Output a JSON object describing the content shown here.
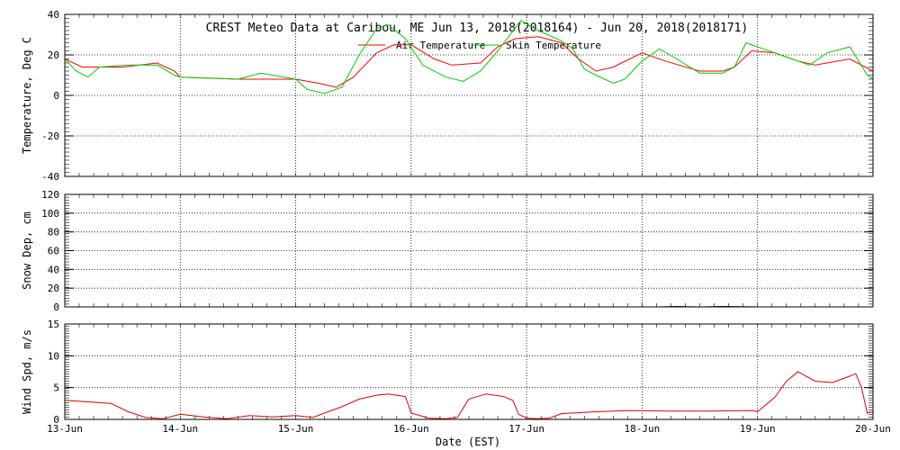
{
  "chart_data": {
    "title": "CREST Meteo Data at Caribou, ME   Jun 13, 2018(2018164) - Jun 20, 2018(2018171)",
    "xlabel": "Date (EST)",
    "x_ticks": [
      "13-Jun",
      "14-Jun",
      "15-Jun",
      "16-Jun",
      "17-Jun",
      "18-Jun",
      "19-Jun",
      "20-Jun"
    ],
    "x_range_days": [
      0,
      7
    ],
    "grid": true,
    "panels": [
      {
        "type": "line",
        "ylabel": "Temperature, Deg C",
        "ylim": [
          -40,
          40
        ],
        "yticks": [
          -40,
          -20,
          0,
          20,
          40
        ],
        "legend": "top-center",
        "series": [
          {
            "name": "Air Temperature",
            "color": "#ff0000",
            "points": [
              [
                0,
                18
              ],
              [
                0.15,
                14
              ],
              [
                0.5,
                14
              ],
              [
                0.8,
                16
              ],
              [
                0.95,
                12
              ],
              [
                1.0,
                9
              ],
              [
                1.5,
                8
              ],
              [
                2.0,
                8
              ],
              [
                2.2,
                6
              ],
              [
                2.35,
                4
              ],
              [
                2.5,
                9
              ],
              [
                2.7,
                21
              ],
              [
                2.85,
                25
              ],
              [
                3.0,
                25
              ],
              [
                3.2,
                18
              ],
              [
                3.35,
                15
              ],
              [
                3.6,
                16
              ],
              [
                3.75,
                24
              ],
              [
                3.9,
                28
              ],
              [
                4.1,
                29
              ],
              [
                4.3,
                26
              ],
              [
                4.45,
                18
              ],
              [
                4.6,
                12
              ],
              [
                4.75,
                14
              ],
              [
                5.0,
                21
              ],
              [
                5.2,
                17
              ],
              [
                5.5,
                12
              ],
              [
                5.7,
                12
              ],
              [
                5.8,
                14
              ],
              [
                5.95,
                22
              ],
              [
                6.15,
                21
              ],
              [
                6.35,
                17
              ],
              [
                6.5,
                15
              ],
              [
                6.8,
                18
              ],
              [
                7.0,
                12
              ]
            ]
          },
          {
            "name": "Skin Temperature",
            "color": "#00cc00",
            "points": [
              [
                0,
                18
              ],
              [
                0.1,
                12
              ],
              [
                0.2,
                9
              ],
              [
                0.3,
                14
              ],
              [
                0.55,
                15
              ],
              [
                0.8,
                15
              ],
              [
                0.95,
                10
              ],
              [
                1.0,
                9
              ],
              [
                1.5,
                8
              ],
              [
                1.7,
                11
              ],
              [
                1.9,
                9
              ],
              [
                2.0,
                8
              ],
              [
                2.1,
                3
              ],
              [
                2.25,
                1
              ],
              [
                2.4,
                4
              ],
              [
                2.55,
                20
              ],
              [
                2.7,
                33
              ],
              [
                2.8,
                35
              ],
              [
                2.95,
                28
              ],
              [
                3.1,
                15
              ],
              [
                3.3,
                9
              ],
              [
                3.45,
                7
              ],
              [
                3.6,
                12
              ],
              [
                3.75,
                22
              ],
              [
                3.95,
                37
              ],
              [
                4.1,
                32
              ],
              [
                4.3,
                27
              ],
              [
                4.4,
                23
              ],
              [
                4.5,
                13
              ],
              [
                4.6,
                10
              ],
              [
                4.75,
                6
              ],
              [
                4.85,
                8
              ],
              [
                5.0,
                17
              ],
              [
                5.15,
                23
              ],
              [
                5.3,
                18
              ],
              [
                5.5,
                11
              ],
              [
                5.7,
                11
              ],
              [
                5.8,
                14
              ],
              [
                5.9,
                26
              ],
              [
                6.05,
                23
              ],
              [
                6.3,
                18
              ],
              [
                6.45,
                15
              ],
              [
                6.6,
                21
              ],
              [
                6.8,
                24
              ],
              [
                6.95,
                10
              ],
              [
                7.0,
                8
              ]
            ]
          }
        ]
      },
      {
        "type": "line",
        "ylabel": "Snow Dep, cm",
        "ylim": [
          0,
          120
        ],
        "yticks": [
          0,
          20,
          40,
          60,
          80,
          100,
          120
        ],
        "series": [
          {
            "color": "#0000aa",
            "points": [
              [
                5.15,
                0
              ],
              [
                5.3,
                0.5
              ],
              [
                5.5,
                0
              ],
              [
                5.7,
                0.5
              ],
              [
                6.0,
                0
              ]
            ]
          }
        ]
      },
      {
        "type": "line",
        "ylabel": "Wind Spd, m/s",
        "ylim": [
          0,
          15
        ],
        "yticks": [
          0,
          5,
          10,
          15
        ],
        "series": [
          {
            "color": "#dd0000",
            "points": [
              [
                0,
                3
              ],
              [
                0.4,
                2.5
              ],
              [
                0.55,
                1.2
              ],
              [
                0.7,
                0.3
              ],
              [
                0.85,
                0.1
              ],
              [
                1.0,
                0.8
              ],
              [
                1.2,
                0.4
              ],
              [
                1.4,
                0.1
              ],
              [
                1.6,
                0.6
              ],
              [
                1.8,
                0.4
              ],
              [
                2.0,
                0.6
              ],
              [
                2.15,
                0.3
              ],
              [
                2.25,
                1.0
              ],
              [
                2.4,
                2.0
              ],
              [
                2.55,
                3.2
              ],
              [
                2.7,
                3.8
              ],
              [
                2.8,
                4.0
              ],
              [
                2.95,
                3.6
              ],
              [
                3.0,
                1.0
              ],
              [
                3.15,
                0.2
              ],
              [
                3.3,
                0.1
              ],
              [
                3.4,
                0.3
              ],
              [
                3.5,
                3.2
              ],
              [
                3.65,
                4.0
              ],
              [
                3.8,
                3.6
              ],
              [
                3.88,
                3.0
              ],
              [
                3.93,
                0.8
              ],
              [
                4.0,
                0.2
              ],
              [
                4.1,
                0.1
              ],
              [
                4.2,
                0.2
              ],
              [
                4.3,
                0.9
              ],
              [
                4.6,
                1.2
              ],
              [
                4.9,
                1.4
              ],
              [
                5.2,
                1.3
              ],
              [
                5.6,
                1.3
              ],
              [
                5.95,
                1.4
              ],
              [
                6.0,
                1.2
              ],
              [
                6.15,
                3.5
              ],
              [
                6.25,
                6.0
              ],
              [
                6.35,
                7.5
              ],
              [
                6.5,
                6.0
              ],
              [
                6.65,
                5.8
              ],
              [
                6.8,
                6.8
              ],
              [
                6.85,
                7.2
              ],
              [
                6.9,
                5.0
              ],
              [
                6.95,
                1.0
              ],
              [
                7.0,
                1.2
              ]
            ]
          }
        ]
      }
    ]
  }
}
